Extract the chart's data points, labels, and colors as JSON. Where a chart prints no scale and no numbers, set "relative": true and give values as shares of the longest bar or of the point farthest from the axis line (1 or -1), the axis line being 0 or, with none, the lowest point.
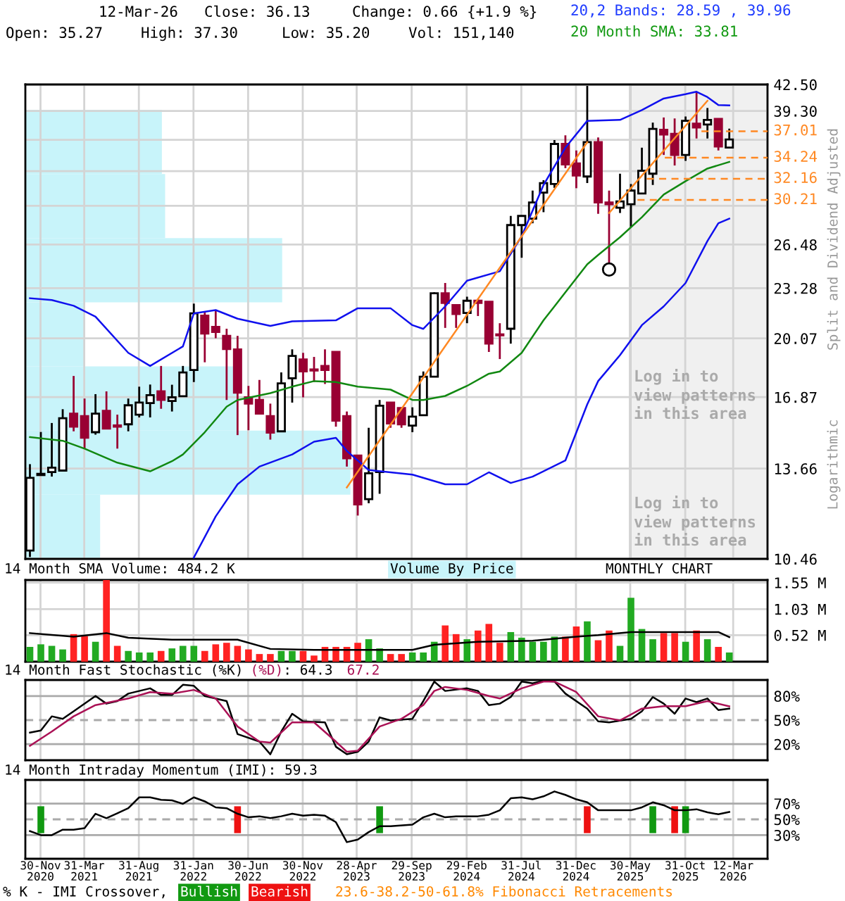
{
  "chart_data": [
    {
      "type": "candlestick",
      "x": [
        "2020-11",
        "2020-12",
        "2021-01",
        "2021-02",
        "2021-03",
        "2021-04",
        "2021-05",
        "2021-06",
        "2021-07",
        "2021-08",
        "2021-09",
        "2021-10",
        "2021-11",
        "2021-12",
        "2022-01",
        "2022-02",
        "2022-03",
        "2022-04",
        "2022-05",
        "2022-06",
        "2022-07",
        "2022-08",
        "2022-09",
        "2022-10",
        "2022-11",
        "2022-12",
        "2023-01",
        "2023-02",
        "2023-03",
        "2023-04",
        "2023-05",
        "2023-06",
        "2023-07",
        "2023-08",
        "2023-09",
        "2023-10",
        "2023-11",
        "2023-12",
        "2024-01",
        "2024-02",
        "2024-03",
        "2024-04",
        "2024-05",
        "2024-06",
        "2024-07",
        "2024-08",
        "2024-09",
        "2024-10",
        "2024-11",
        "2024-12",
        "2025-01",
        "2025-02",
        "2025-03",
        "2025-04",
        "2025-05",
        "2025-06",
        "2025-07",
        "2025-08",
        "2025-09",
        "2025-10",
        "2025-11",
        "2025-12",
        "2026-01",
        "2026-02",
        "2026-03"
      ],
      "ohlc": [
        [
          10.72,
          13.84,
          10.52,
          13.29
        ],
        [
          13.4,
          15.22,
          13.4,
          13.45
        ],
        [
          13.52,
          15.63,
          13.34,
          13.7
        ],
        [
          13.58,
          16.28,
          13.58,
          15.85
        ],
        [
          16.07,
          17.96,
          15.25,
          15.46
        ],
        [
          15.95,
          16.8,
          14.47,
          14.96
        ],
        [
          15.21,
          17.02,
          15.1,
          16.07
        ],
        [
          16.2,
          17.16,
          15.37,
          15.37
        ],
        [
          15.52,
          16.02,
          14.49,
          15.46
        ],
        [
          15.57,
          16.8,
          15.25,
          16.47
        ],
        [
          16.02,
          17.4,
          15.89,
          16.6
        ],
        [
          16.58,
          17.51,
          15.89,
          16.97
        ],
        [
          17.16,
          18.5,
          16.3,
          16.73
        ],
        [
          16.68,
          17.5,
          16.17,
          16.86
        ],
        [
          16.92,
          18.5,
          16.9,
          18.15
        ],
        [
          18.28,
          22.24,
          17.64,
          21.61
        ],
        [
          21.46,
          21.66,
          18.7,
          20.36
        ],
        [
          20.76,
          21.82,
          20.08,
          20.45
        ],
        [
          20.22,
          20.65,
          16.73,
          19.45
        ],
        [
          19.43,
          20.22,
          15.08,
          17.09
        ],
        [
          16.86,
          17.44,
          15.3,
          16.55
        ],
        [
          16.73,
          17.75,
          16.07,
          16.07
        ],
        [
          15.95,
          16.55,
          14.88,
          15.19
        ],
        [
          15.25,
          18.15,
          15.21,
          17.57
        ],
        [
          17.84,
          19.43,
          16.6,
          19.06
        ],
        [
          18.86,
          19.23,
          16.86,
          18.2
        ],
        [
          18.31,
          19.0,
          17.64,
          18.25
        ],
        [
          18.5,
          19.43,
          17.54,
          18.28
        ],
        [
          19.28,
          19.28,
          15.46,
          15.74
        ],
        [
          15.95,
          16.17,
          13.74,
          14.08
        ],
        [
          14.2,
          14.2,
          11.89,
          12.29
        ],
        [
          12.48,
          15.41,
          12.33,
          13.47
        ],
        [
          13.52,
          16.73,
          12.68,
          16.45
        ],
        [
          16.6,
          16.6,
          15.41,
          15.61
        ],
        [
          16.34,
          16.34,
          15.41,
          15.57
        ],
        [
          15.51,
          16.37,
          15.21,
          15.93
        ],
        [
          15.99,
          18.2,
          15.99,
          17.92
        ],
        [
          17.92,
          23.0,
          17.92,
          22.93
        ],
        [
          22.93,
          23.64,
          20.7,
          22.29
        ],
        [
          22.14,
          22.14,
          20.7,
          21.57
        ],
        [
          21.63,
          22.7,
          20.99,
          22.43
        ],
        [
          22.43,
          22.55,
          21.44,
          22.29
        ],
        [
          22.36,
          22.36,
          19.28,
          19.76
        ],
        [
          20.31,
          20.99,
          18.88,
          20.25
        ],
        [
          20.65,
          28.82,
          19.76,
          28.05
        ],
        [
          28.05,
          28.82,
          25.47,
          28.82
        ],
        [
          28.59,
          31.06,
          28.2,
          29.99
        ],
        [
          30.88,
          32.03,
          29.14,
          31.76
        ],
        [
          31.67,
          36.06,
          31.31,
          35.65
        ],
        [
          35.65,
          36.57,
          33.19,
          33.56
        ],
        [
          33.66,
          34.97,
          31.28,
          32.48
        ],
        [
          32.38,
          42.32,
          31.76,
          35.84
        ],
        [
          35.84,
          36.34,
          29.0,
          29.99
        ],
        [
          29.99,
          31.06,
          25.0,
          29.83
        ],
        [
          29.52,
          32.65,
          29.07,
          30.08
        ],
        [
          29.83,
          31.67,
          27.89,
          31.06
        ],
        [
          30.79,
          35.26,
          30.79,
          32.93
        ],
        [
          32.65,
          37.97,
          31.58,
          37.27
        ],
        [
          37.18,
          38.55,
          34.51,
          36.66
        ],
        [
          36.73,
          38.44,
          33.45,
          34.51
        ],
        [
          34.51,
          38.66,
          33.91,
          38.17
        ],
        [
          37.86,
          41.6,
          36.23,
          37.43
        ],
        [
          37.76,
          39.65,
          36.23,
          38.28
        ],
        [
          38.39,
          38.39,
          34.97,
          35.39
        ],
        [
          35.27,
          37.3,
          35.2,
          36.13
        ]
      ],
      "colors": [
        "#ffffff",
        "#ffffff",
        "#ffffff",
        "#ffffff",
        "#990033",
        "#990033",
        "#ffffff",
        "#990033",
        "#990033",
        "#ffffff",
        "#ffffff",
        "#ffffff",
        "#990033",
        "#ffffff",
        "#ffffff",
        "#ffffff",
        "#990033",
        "#990033",
        "#990033",
        "#990033",
        "#990033",
        "#990033",
        "#990033",
        "#ffffff",
        "#ffffff",
        "#990033",
        "#990033",
        "#990033",
        "#990033",
        "#990033",
        "#990033",
        "#ffffff",
        "#ffffff",
        "#990033",
        "#990033",
        "#ffffff",
        "#ffffff",
        "#ffffff",
        "#990033",
        "#990033",
        "#ffffff",
        "#990033",
        "#990033",
        "#990033",
        "#ffffff",
        "#ffffff",
        "#ffffff",
        "#ffffff",
        "#ffffff",
        "#990033",
        "#990033",
        "#ffffff",
        "#990033",
        "#990033",
        "#ffffff",
        "#ffffff",
        "#ffffff",
        "#ffffff",
        "#990033",
        "#990033",
        "#ffffff",
        "#990033",
        "#ffffff",
        "#990033",
        "#ffffff"
      ],
      "series": [
        {
          "type": "line",
          "color": "#1010ee",
          "x": [
            "2020-11",
            "2021-01",
            "2021-03",
            "2021-05",
            "2021-08",
            "2021-10",
            "2022-01",
            "2022-02",
            "2022-04",
            "2022-06",
            "2022-09",
            "2022-11",
            "2023-03",
            "2023-05",
            "2023-08",
            "2023-10",
            "2023-11",
            "2024-01",
            "2024-03",
            "2024-06",
            "2024-08",
            "2024-10",
            "2024-12",
            "2025-02",
            "2025-05",
            "2025-07",
            "2025-09",
            "2025-11",
            "2025-12",
            "2026-01",
            "2026-02",
            "2026-03"
          ],
          "values": [
            22.6,
            22.48,
            22.1,
            21.4,
            19.23,
            18.5,
            19.6,
            21.61,
            21.82,
            21.27,
            20.82,
            21.11,
            21.17,
            21.94,
            21.94,
            20.87,
            20.64,
            22.06,
            23.8,
            24.47,
            27.14,
            31.58,
            35.26,
            38.17,
            38.28,
            39.4,
            40.77,
            41.3,
            41.6,
            40.94,
            40.0,
            39.96
          ]
        },
        {
          "type": "line",
          "color": "#1010ee",
          "x": [
            "2022-02",
            "2022-04",
            "2022-06",
            "2022-08",
            "2022-11",
            "2023-01",
            "2023-03",
            "2023-04",
            "2023-06",
            "2023-10",
            "2024-01",
            "2024-03",
            "2024-05",
            "2024-07",
            "2024-09",
            "2024-12",
            "2025-02",
            "2025-03",
            "2025-05",
            "2025-07",
            "2025-09",
            "2025-11",
            "2026-01",
            "2026-02",
            "2026-03"
          ],
          "values": [
            10.5,
            11.86,
            13.04,
            13.74,
            14.24,
            14.79,
            14.96,
            14.39,
            13.6,
            13.42,
            13.04,
            13.04,
            13.51,
            13.09,
            13.34,
            13.99,
            16.51,
            17.69,
            19.1,
            20.87,
            22.06,
            23.64,
            26.76,
            28.2,
            28.59
          ]
        },
        {
          "type": "line",
          "color": "#118811",
          "x": [
            "2020-11",
            "2021-02",
            "2021-04",
            "2021-07",
            "2021-10",
            "2021-12",
            "2022-01",
            "2022-03",
            "2022-05",
            "2022-06",
            "2022-09",
            "2022-11",
            "2023-01",
            "2023-03",
            "2023-05",
            "2023-08",
            "2023-10",
            "2023-11",
            "2024-01",
            "2024-03",
            "2024-05",
            "2024-06",
            "2024-08",
            "2024-10",
            "2024-11",
            "2024-12",
            "2025-02",
            "2025-03",
            "2025-05",
            "2025-07",
            "2025-09",
            "2025-11",
            "2026-01",
            "2026-03"
          ],
          "values": [
            14.99,
            14.83,
            14.49,
            13.9,
            13.55,
            13.96,
            14.24,
            15.21,
            16.4,
            16.73,
            17.07,
            17.4,
            17.69,
            17.64,
            17.4,
            17.25,
            16.73,
            16.73,
            16.93,
            17.44,
            18.08,
            18.2,
            19.23,
            21.17,
            22.06,
            23.0,
            24.98,
            25.68,
            27.06,
            28.71,
            30.7,
            31.94,
            33.15,
            33.81
          ]
        },
        {
          "type": "line",
          "color": "#ff8822",
          "x": [
            "2023-04",
            "2025-02"
          ],
          "values": [
            12.92,
            35.84
          ]
        },
        {
          "type": "line",
          "color": "#ff8822",
          "x": [
            "2025-04",
            "2026-01"
          ],
          "values": [
            29.07,
            40.5
          ]
        },
        {
          "type": "scatter",
          "color": "#000000",
          "marker": "circle",
          "x": [
            "2025-04"
          ],
          "values": [
            24.6
          ]
        },
        {
          "type": "line",
          "color": "#ff8822",
          "line_style": "dashed",
          "x": [
            "2025-12-15",
            "2026-06-16"
          ],
          "values": [
            37.01,
            37.01
          ],
          "value_labels": [
            null,
            "37.01"
          ]
        },
        {
          "type": "line",
          "color": "#ff8822",
          "line_style": "dashed",
          "x": [
            "2025-09-04",
            "2026-06-16"
          ],
          "values": [
            34.24,
            34.24
          ],
          "value_labels": [
            null,
            "34.24"
          ]
        },
        {
          "type": "line",
          "color": "#ff8822",
          "line_style": "dashed",
          "x": [
            "2025-07-15",
            "2026-06-16"
          ],
          "values": [
            32.16,
            32.16
          ],
          "value_labels": [
            null,
            "32.16"
          ]
        },
        {
          "type": "line",
          "color": "#ff8822",
          "line_style": "dashed",
          "x": [
            "2025-06-19",
            "2026-06-16"
          ],
          "values": [
            30.21,
            30.21
          ],
          "value_labels": [
            null,
            "30.21"
          ]
        }
      ],
      "xlim": [
        "2020-10-19",
        "2026-06-16"
      ],
      "xticks": [
        {
          "value": "2020-11-30",
          "label": null
        },
        {
          "value": "2021-03-31",
          "label": null
        },
        {
          "value": "2021-08-31",
          "label": null
        },
        {
          "value": "2022-01-31",
          "label": null
        },
        {
          "value": "2022-06-30",
          "label": null
        },
        {
          "value": "2022-11-30",
          "label": null
        },
        {
          "value": "2023-04-28",
          "label": null
        },
        {
          "value": "2023-09-29",
          "label": null
        },
        {
          "value": "2024-02-29",
          "label": null
        },
        {
          "value": "2024-07-31",
          "label": null
        },
        {
          "value": "2024-12-31",
          "label": null
        },
        {
          "value": "2025-05-30",
          "label": null
        },
        {
          "value": "2025-10-31",
          "label": null
        },
        {
          "value": "2026-03-12",
          "label": null
        }
      ],
      "log": true,
      "ylim": [
        10.46,
        42.5
      ],
      "yticks": [
        {
          "value": 42.5,
          "label": "42.50"
        },
        {
          "value": 39.3,
          "label": "39.30"
        },
        {
          "value": 36.09,
          "label": null
        },
        {
          "value": 32.89,
          "label": null
        },
        {
          "value": 29.69,
          "label": null
        },
        26.48,
        23.28,
        20.07,
        16.87,
        13.66,
        10.46
      ],
      "grid": true,
      "tick_labels": "y",
      "bands": [
        {
          "axis": "x",
          "from": "2025-05-30",
          "to": "2026-06-16",
          "label": null,
          "color": "#f0f0f0"
        }
      ],
      "annotations": [
        "12-Mar-26",
        "Close: 36.13",
        "Change: 0.66 {+1.9 %}",
        "Open: 35.27",
        "High: 37.30",
        "Low: 35.20",
        "Vol: 151,140",
        "20,2 Bands: 28.59 , 39.96",
        "20 Month SMA: 33.81",
        "Split and Dividend Adjusted",
        "Logarithmic",
        "Log in to\nview patterns\nin this area",
        "Log in to\nview patterns\nin this area"
      ]
    },
    {
      "type": "bar",
      "orientation": "horizontal",
      "relative": true,
      "categories": [
        null,
        null,
        null,
        null,
        null,
        null,
        null
      ],
      "values": [
        0.42,
        0.43,
        0.79,
        0.18,
        0.65,
        1,
        0.23
      ],
      "color": "#c8f4fa"
    },
    {
      "type": "bar",
      "x": [
        "2020-11",
        "2020-12",
        "2021-01",
        "2021-02",
        "2021-03",
        "2021-04",
        "2021-05",
        "2021-06",
        "2021-07",
        "2021-08",
        "2021-09",
        "2021-10",
        "2021-11",
        "2021-12",
        "2022-01",
        "2022-02",
        "2022-03",
        "2022-04",
        "2022-05",
        "2022-06",
        "2022-07",
        "2022-08",
        "2022-09",
        "2022-10",
        "2022-11",
        "2022-12",
        "2023-01",
        "2023-02",
        "2023-03",
        "2023-04",
        "2023-05",
        "2023-06",
        "2023-07",
        "2023-08",
        "2023-09",
        "2023-10",
        "2023-11",
        "2023-12",
        "2024-01",
        "2024-02",
        "2024-03",
        "2024-04",
        "2024-05",
        "2024-06",
        "2024-07",
        "2024-08",
        "2024-09",
        "2024-10",
        "2024-11",
        "2024-12",
        "2025-01",
        "2025-02",
        "2025-03",
        "2025-04",
        "2025-05",
        "2025-06",
        "2025-07",
        "2025-08",
        "2025-09",
        "2025-10",
        "2025-11",
        "2025-12",
        "2026-01",
        "2026-02",
        "2026-03"
      ],
      "series": [
        {
          "type": "bar",
          "values": [
            0.29,
            0.34,
            0.31,
            0.24,
            0.54,
            0.5,
            0.39,
            1.6,
            0.31,
            0.21,
            0.18,
            0.18,
            0.21,
            0.26,
            0.31,
            0.31,
            0.21,
            0.34,
            0.37,
            0.31,
            0.24,
            0.15,
            0.15,
            0.21,
            0.21,
            0.21,
            0.12,
            0.29,
            0.29,
            0.29,
            0.37,
            0.44,
            0.26,
            0.15,
            0.15,
            0.18,
            0.18,
            0.39,
            0.71,
            0.54,
            0.44,
            0.61,
            0.74,
            0.37,
            0.58,
            0.47,
            0.39,
            0.39,
            0.49,
            0.49,
            0.69,
            0.79,
            0.42,
            0.61,
            0.31,
            1.25,
            0.64,
            0.44,
            0.56,
            0.56,
            0.39,
            0.61,
            0.44,
            0.29,
            0.18
          ],
          "colors": [
            "#22aa22",
            "#22aa22",
            "#22aa22",
            "#22aa22",
            "#ff2222",
            "#ff2222",
            "#22aa22",
            "#ff2222",
            "#ff2222",
            "#22aa22",
            "#22aa22",
            "#22aa22",
            "#ff2222",
            "#22aa22",
            "#22aa22",
            "#22aa22",
            "#ff2222",
            "#ff2222",
            "#ff2222",
            "#ff2222",
            "#ff2222",
            "#ff2222",
            "#ff2222",
            "#22aa22",
            "#22aa22",
            "#ff2222",
            "#ff2222",
            "#ff2222",
            "#ff2222",
            "#ff2222",
            "#ff2222",
            "#22aa22",
            "#22aa22",
            "#ff2222",
            "#ff2222",
            "#22aa22",
            "#22aa22",
            "#22aa22",
            "#ff2222",
            "#ff2222",
            "#22aa22",
            "#ff2222",
            "#ff2222",
            "#ff2222",
            "#22aa22",
            "#22aa22",
            "#22aa22",
            "#22aa22",
            "#22aa22",
            "#ff2222",
            "#ff2222",
            "#22aa22",
            "#ff2222",
            "#ff2222",
            "#22aa22",
            "#22aa22",
            "#22aa22",
            "#22aa22",
            "#ff2222",
            "#ff2222",
            "#22aa22",
            "#ff2222",
            "#22aa22",
            "#ff2222",
            "#22aa22"
          ]
        },
        {
          "type": "line",
          "color": "#000000",
          "x": [
            "2020-11",
            "2021-03",
            "2021-06",
            "2021-08",
            "2021-12",
            "2022-06",
            "2022-09",
            "2023-01",
            "2023-10",
            "2023-12",
            "2024-04",
            "2024-09",
            "2025-01",
            "2025-03",
            "2025-06",
            "2025-10",
            "2026-02",
            "2026-03"
          ],
          "values": [
            0.56,
            0.49,
            0.56,
            0.47,
            0.43,
            0.43,
            0.25,
            0.23,
            0.23,
            0.33,
            0.39,
            0.41,
            0.49,
            0.52,
            0.58,
            0.58,
            0.58,
            0.48
          ]
        }
      ],
      "xlim": [
        "2020-10-19",
        "2026-06-16"
      ],
      "xticks": [
        {
          "value": "2020-11-30",
          "label": null
        },
        {
          "value": "2021-03-31",
          "label": null
        },
        {
          "value": "2021-08-31",
          "label": null
        },
        {
          "value": "2022-01-31",
          "label": null
        },
        {
          "value": "2022-06-30",
          "label": null
        },
        {
          "value": "2022-11-30",
          "label": null
        },
        {
          "value": "2023-04-28",
          "label": null
        },
        {
          "value": "2023-09-29",
          "label": null
        },
        {
          "value": "2024-02-29",
          "label": null
        },
        {
          "value": "2024-07-31",
          "label": null
        },
        {
          "value": "2024-12-31",
          "label": null
        },
        {
          "value": "2025-05-30",
          "label": null
        },
        {
          "value": "2025-10-31",
          "label": null
        },
        {
          "value": "2026-03-12",
          "label": null
        }
      ],
      "ylim": [
        0,
        1.6
      ],
      "yticks": [
        {
          "value": 1.55,
          "label": "1.55 M"
        },
        {
          "value": 1.03,
          "label": "1.03 M"
        },
        {
          "value": 0.52,
          "label": "0.52 M"
        }
      ],
      "grid": true,
      "tick_labels": "y",
      "annotations": [
        "14 Month SMA Volume: 484.2 K",
        "Volume By Price",
        "MONTHLY CHART"
      ]
    },
    {
      "type": "line",
      "series": [
        {
          "type": "line",
          "color": "#000000",
          "x": [
            "2020-11",
            "2020-12",
            "2021-01",
            "2021-02",
            "2021-03",
            "2021-05",
            "2021-06",
            "2021-07",
            "2021-08",
            "2021-10",
            "2021-11",
            "2021-12",
            "2022-01",
            "2022-02",
            "2022-03",
            "2022-05",
            "2022-06",
            "2022-08",
            "2022-09",
            "2022-10",
            "2022-11",
            "2022-12",
            "2023-02",
            "2023-03",
            "2023-04",
            "2023-05",
            "2023-06",
            "2023-07",
            "2023-08",
            "2023-10",
            "2023-11",
            "2023-12",
            "2024-01",
            "2024-03",
            "2024-04",
            "2024-05",
            "2024-06",
            "2024-07",
            "2024-08",
            "2024-09",
            "2024-10",
            "2024-11",
            "2024-12",
            "2025-02",
            "2025-03",
            "2025-04",
            "2025-06",
            "2025-07",
            "2025-08",
            "2025-09",
            "2025-10",
            "2025-11",
            "2025-12",
            "2026-01",
            "2026-02",
            "2026-03"
          ],
          "values": [
            34.5,
            37,
            54.7,
            51.6,
            61,
            80,
            70.5,
            73.7,
            83,
            89.6,
            81.3,
            81.3,
            94,
            92.7,
            80,
            73.7,
            32.6,
            23.2,
            7.4,
            35.8,
            57.9,
            48.5,
            47.2,
            16.8,
            7.4,
            10.5,
            23.2,
            53.4,
            49.6,
            51.6,
            73.7,
            98,
            86.3,
            89.6,
            86.3,
            68.7,
            70.5,
            78.7,
            98,
            95.8,
            99,
            98,
            83,
            64.3,
            48.5,
            47.2,
            51.6,
            61,
            78.7,
            70.5,
            57.9,
            76.9,
            72.4,
            76.9,
            62.5,
            64.3
          ]
        },
        {
          "type": "line",
          "color": "#aa1155",
          "x": [
            "2020-11",
            "2021-01",
            "2021-03",
            "2021-05",
            "2021-08",
            "2021-10",
            "2021-12",
            "2022-02",
            "2022-04",
            "2022-06",
            "2022-08",
            "2022-09",
            "2022-11",
            "2023-01",
            "2023-03",
            "2023-04",
            "2023-05",
            "2023-07",
            "2023-09",
            "2023-11",
            "2023-12",
            "2024-01",
            "2024-03",
            "2024-05",
            "2024-06",
            "2024-08",
            "2024-10",
            "2024-11",
            "2025-01",
            "2025-03",
            "2025-05",
            "2025-07",
            "2025-09",
            "2025-11",
            "2026-01",
            "2026-03"
          ],
          "values": [
            18,
            35.8,
            54.7,
            68.7,
            76.9,
            84.9,
            83,
            87.6,
            76.9,
            42,
            23.2,
            21.9,
            47.2,
            47.2,
            23.2,
            10.5,
            11.8,
            42,
            51.6,
            68.7,
            86.3,
            91.3,
            87.6,
            80,
            76.9,
            89.6,
            98,
            98,
            84.9,
            54.7,
            49.6,
            64.3,
            67.4,
            67.4,
            73.7,
            67.2
          ]
        }
      ],
      "xlim": [
        "2020-10-19",
        "2026-06-16"
      ],
      "xticks": [
        {
          "value": "2020-11-30",
          "label": null
        },
        {
          "value": "2021-03-31",
          "label": null
        },
        {
          "value": "2021-08-31",
          "label": null
        },
        {
          "value": "2022-01-31",
          "label": null
        },
        {
          "value": "2022-06-30",
          "label": null
        },
        {
          "value": "2022-11-30",
          "label": null
        },
        {
          "value": "2023-04-28",
          "label": null
        },
        {
          "value": "2023-09-29",
          "label": null
        },
        {
          "value": "2024-02-29",
          "label": null
        },
        {
          "value": "2024-07-31",
          "label": null
        },
        {
          "value": "2024-12-31",
          "label": null
        },
        {
          "value": "2025-05-30",
          "label": null
        },
        {
          "value": "2025-10-31",
          "label": null
        },
        {
          "value": "2026-03-12",
          "label": null
        }
      ],
      "ylim": [
        0,
        100
      ],
      "yticks": [
        {
          "value": 80,
          "label": "80%"
        },
        {
          "value": 50,
          "label": "50%"
        },
        {
          "value": 20,
          "label": "20%"
        }
      ],
      "grid": "x",
      "tick_labels": "y",
      "ref_lines": [
        {
          "axis": "y",
          "value": 80,
          "label": null,
          "color": "#aaaaaa",
          "line_style": "solid"
        },
        {
          "axis": "y",
          "value": 50,
          "label": null,
          "color": "#aaaaaa",
          "line_style": "dashed"
        },
        {
          "axis": "y",
          "value": 20,
          "label": null,
          "color": "#aaaaaa",
          "line_style": "solid"
        }
      ],
      "annotations": [
        "14 Month Fast Stochastic (%K)",
        "(%D)",
        ": 64.3",
        "67.2"
      ]
    },
    {
      "type": "line",
      "series": [
        {
          "type": "line",
          "color": "#000000",
          "x": [
            "2020-11",
            "2020-12",
            "2021-01",
            "2021-02",
            "2021-03",
            "2021-04",
            "2021-05",
            "2021-06",
            "2021-07",
            "2021-08",
            "2021-09",
            "2021-10",
            "2021-11",
            "2021-12",
            "2022-01",
            "2022-02",
            "2022-03",
            "2022-04",
            "2022-05",
            "2022-06",
            "2022-07",
            "2022-08",
            "2022-09",
            "2022-10",
            "2022-11",
            "2022-12",
            "2023-01",
            "2023-02",
            "2023-03",
            "2023-04",
            "2023-05",
            "2023-06",
            "2023-07",
            "2023-08",
            "2023-10",
            "2023-11",
            "2023-12",
            "2024-01",
            "2024-02",
            "2024-04",
            "2024-05",
            "2024-06",
            "2024-07",
            "2024-08",
            "2024-09",
            "2024-10",
            "2024-11",
            "2024-12",
            "2025-01",
            "2025-02",
            "2025-03",
            "2025-04",
            "2025-06",
            "2025-07",
            "2025-08",
            "2025-09",
            "2025-10",
            "2025-11",
            "2025-12",
            "2026-01",
            "2026-02",
            "2026-03"
          ],
          "values": [
            35.1,
            30,
            30,
            36.9,
            36.9,
            38.9,
            57.1,
            51.5,
            57.7,
            64.1,
            77.9,
            77.9,
            74.8,
            74.1,
            69.7,
            77.9,
            72.8,
            65.2,
            64.1,
            57.1,
            52.6,
            53.9,
            51.5,
            53.9,
            57.1,
            54.6,
            55.9,
            54.6,
            46.4,
            21.1,
            24.3,
            33.8,
            41.3,
            41.3,
            43.3,
            52.6,
            57.1,
            52.6,
            53.9,
            53.9,
            55.9,
            61.5,
            76.7,
            77.9,
            75.4,
            79.2,
            85.4,
            81,
            75.4,
            71.6,
            61.5,
            61.5,
            61.5,
            65.2,
            71.6,
            67.9,
            61.5,
            61.5,
            62.8,
            59,
            56.4,
            59.3
          ]
        },
        {
          "type": "bar",
          "x": [
            "2020-12",
            "2022-06",
            "2023-07",
            "2025-02",
            "2025-08",
            "2025-10",
            "2025-11"
          ],
          "base": [
            32.5,
            32.5,
            32.5,
            32.5,
            32.5,
            32.5,
            32.5
          ],
          "values": [
            34.1,
            34.1,
            34.1,
            34.1,
            34.1,
            34.1,
            34.1
          ],
          "colors": [
            "#119911",
            "#ee1111",
            "#119911",
            "#ee1111",
            "#119911",
            "#ee1111",
            "#119911"
          ]
        }
      ],
      "xlim": [
        "2020-10-19",
        "2026-06-16"
      ],
      "xticks": [
        {
          "value": "2020-11-30",
          "label": "30-Nov\n2020"
        },
        {
          "value": "2021-03-31",
          "label": "31-Mar\n2021"
        },
        {
          "value": "2021-08-31",
          "label": "31-Aug\n2021"
        },
        {
          "value": "2022-01-31",
          "label": "31-Jan\n2022"
        },
        {
          "value": "2022-06-30",
          "label": "30-Jun\n2022"
        },
        {
          "value": "2022-11-30",
          "label": "30-Nov\n2022"
        },
        {
          "value": "2023-04-28",
          "label": "28-Apr\n2023"
        },
        {
          "value": "2023-09-29",
          "label": "29-Sep\n2023"
        },
        {
          "value": "2024-02-29",
          "label": "29-Feb\n2024"
        },
        {
          "value": "2024-07-31",
          "label": "31-Jul\n2024"
        },
        {
          "value": "2024-12-31",
          "label": "31-Dec\n2024"
        },
        {
          "value": "2025-05-30",
          "label": "30-May\n2025"
        },
        {
          "value": "2025-10-31",
          "label": "31-Oct\n2025"
        },
        {
          "value": "2026-03-12",
          "label": "12-Mar\n2026"
        }
      ],
      "ylim": [
        0,
        100
      ],
      "yticks": [
        {
          "value": 70,
          "label": "70%"
        },
        {
          "value": 50,
          "label": "50%"
        },
        {
          "value": 30,
          "label": "30%"
        }
      ],
      "grid": "x",
      "ref_lines": [
        {
          "axis": "y",
          "value": 70,
          "label": null,
          "color": "#aaaaaa",
          "line_style": "solid"
        },
        {
          "axis": "y",
          "value": 50,
          "label": null,
          "color": "#aaaaaa",
          "line_style": "dashed"
        },
        {
          "axis": "y",
          "value": 30,
          "label": null,
          "color": "#aaaaaa",
          "line_style": "solid"
        }
      ],
      "annotations": [
        "14 Month Intraday Momentum (IMI): 59.3",
        "% K - IMI Crossover,",
        "Bullish",
        "Bearish",
        "23.6-38.2-50-61.8% Fibonacci Retracements"
      ]
    }
  ]
}
